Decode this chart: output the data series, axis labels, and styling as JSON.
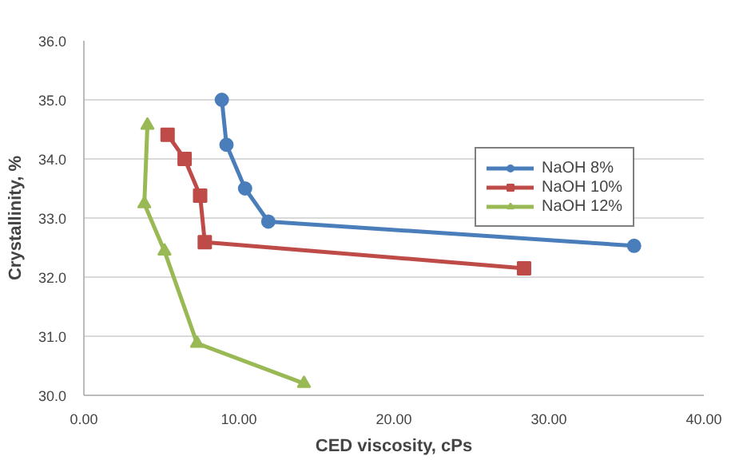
{
  "chart_data": {
    "type": "line",
    "xlabel": "CED viscosity, cPs",
    "ylabel": "Crystallinity, %",
    "xlim": [
      0,
      40
    ],
    "xticks": [
      {
        "value": 0,
        "label": "0.00"
      },
      {
        "value": 10,
        "label": "10.00"
      },
      {
        "value": 20,
        "label": "20.00"
      },
      {
        "value": 30,
        "label": "30.00"
      },
      {
        "value": 40,
        "label": "40.00"
      }
    ],
    "ylim": [
      30,
      36
    ],
    "yticks": [
      {
        "value": 30,
        "label": "30.0"
      },
      {
        "value": 31,
        "label": "31.0"
      },
      {
        "value": 32,
        "label": "32.0"
      },
      {
        "value": 33,
        "label": "33.0"
      },
      {
        "value": 34,
        "label": "34.0"
      },
      {
        "value": 35,
        "label": "35.0"
      },
      {
        "value": 36,
        "label": "36.0"
      }
    ],
    "grid": "y",
    "legend": "right",
    "series": [
      {
        "name": "NaOH 8%",
        "color": "#4a7ebb",
        "marker": "circle",
        "x": [
          8.9,
          9.2,
          10.4,
          11.9,
          35.5
        ],
        "values": [
          35.0,
          34.24,
          33.5,
          32.94,
          32.53
        ]
      },
      {
        "name": "NaOH 10%",
        "color": "#be4b48",
        "marker": "square",
        "x": [
          5.4,
          6.5,
          7.5,
          7.8,
          28.4
        ],
        "values": [
          34.41,
          34.0,
          33.38,
          32.59,
          32.15
        ]
      },
      {
        "name": "NaOH 12%",
        "color": "#98b954",
        "marker": "triangle",
        "x": [
          4.1,
          3.9,
          5.2,
          7.3,
          14.2
        ],
        "values": [
          34.57,
          33.24,
          32.44,
          30.88,
          30.2
        ]
      }
    ]
  }
}
